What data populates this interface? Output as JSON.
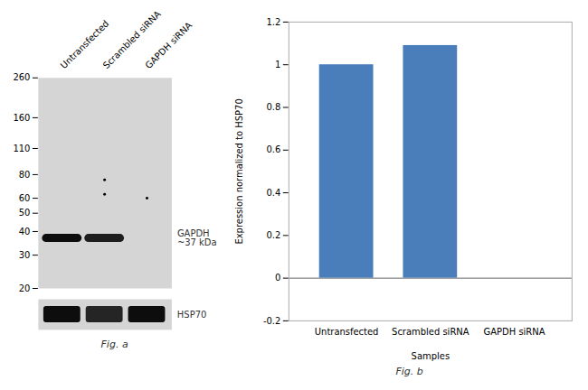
{
  "chart_data": [
    {
      "type": "blot",
      "title": "Fig. a",
      "categories": [
        "Untransfected",
        "Scrambled siRNA",
        "GAPDH siRNA"
      ],
      "ylim": [
        20,
        260
      ],
      "yticks": [
        260,
        160,
        110,
        80,
        60,
        50,
        40,
        30,
        20
      ],
      "log": "y",
      "grid": false,
      "series": [
        {
          "name": "GAPDH\n~37 kDa",
          "values": [
            37,
            37,
            null
          ],
          "colors": [
            "#0d0d0d",
            "#1e1e1e",
            null
          ]
        }
      ],
      "artifacts": {
        "categories": [
          "Scrambled siRNA",
          "Scrambled siRNA",
          "GAPDH siRNA"
        ],
        "values": [
          63,
          75,
          60
        ]
      },
      "loading_control": {
        "name": "HSP70",
        "present": [
          true,
          true,
          true
        ],
        "colors": [
          "#0d0d0d",
          "#252525",
          "#0d0d0d"
        ]
      }
    },
    {
      "type": "bar",
      "title": "Fig. b",
      "categories": [
        "Untransfected",
        "Scrambled siRNA",
        "GAPDH siRNA"
      ],
      "values": [
        1.0,
        1.09,
        0.0
      ],
      "color": "#4a7eba",
      "xlabel": "Samples",
      "ylabel": "Expression normalized to HSP70",
      "ylim": [
        -0.2,
        1.2
      ],
      "yticks": [
        -0.2,
        0,
        0.2,
        0.4,
        0.6,
        0.8,
        1,
        1.2
      ],
      "grid": false
    }
  ]
}
